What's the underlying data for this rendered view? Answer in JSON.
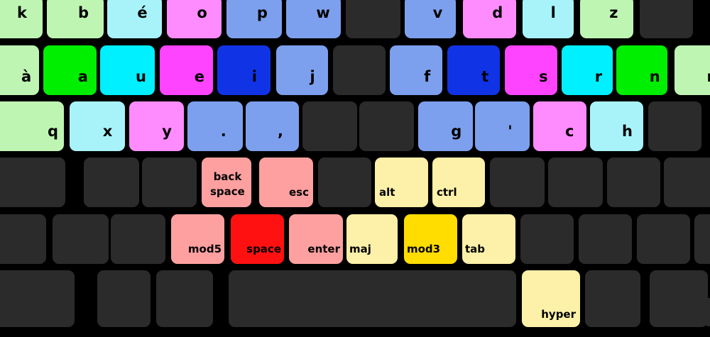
{
  "colors": {
    "dark": "#2b2b2b",
    "light_green": "#bff5b3",
    "green": "#00ee00",
    "light_cyan": "#a8f3fa",
    "cyan": "#00f0ff",
    "magenta": "#ff44ff",
    "pink": "#ff8cff",
    "light_blue": "#7da0ee",
    "blue": "#1133e6",
    "salmon": "#ffa0a0",
    "red": "#ff1111",
    "light_yellow": "#fdf0a8",
    "yellow": "#ffdd00"
  },
  "rows": [
    [
      {
        "label": "k",
        "color": "light_green"
      },
      {
        "label": "b",
        "color": "light_green"
      },
      {
        "label": "é",
        "color": "light_cyan"
      },
      {
        "label": "o",
        "color": "pink"
      },
      {
        "label": "p",
        "color": "light_blue"
      },
      {
        "label": "w",
        "color": "light_blue"
      },
      {
        "label": "",
        "color": "dark"
      },
      {
        "label": "v",
        "color": "light_blue"
      },
      {
        "label": "d",
        "color": "pink"
      },
      {
        "label": "l",
        "color": "light_cyan"
      },
      {
        "label": "z",
        "color": "light_green"
      },
      {
        "label": "",
        "color": "dark"
      }
    ],
    [
      {
        "label": "à",
        "color": "light_green"
      },
      {
        "label": "a",
        "color": "green"
      },
      {
        "label": "u",
        "color": "cyan"
      },
      {
        "label": "e",
        "color": "magenta"
      },
      {
        "label": "i",
        "color": "blue"
      },
      {
        "label": "j",
        "color": "light_blue"
      },
      {
        "label": "",
        "color": "dark"
      },
      {
        "label": "f",
        "color": "light_blue"
      },
      {
        "label": "t",
        "color": "blue"
      },
      {
        "label": "s",
        "color": "magenta"
      },
      {
        "label": "r",
        "color": "cyan"
      },
      {
        "label": "n",
        "color": "green"
      },
      {
        "label": "m",
        "color": "light_green"
      }
    ],
    [
      {
        "label": "q",
        "color": "light_green"
      },
      {
        "label": "x",
        "color": "light_cyan"
      },
      {
        "label": "y",
        "color": "pink"
      },
      {
        "label": ".",
        "color": "light_blue"
      },
      {
        "label": ",",
        "color": "light_blue"
      },
      {
        "label": "",
        "color": "dark"
      },
      {
        "label": "",
        "color": "dark"
      },
      {
        "label": "g",
        "color": "light_blue"
      },
      {
        "label": "'",
        "color": "light_blue"
      },
      {
        "label": "c",
        "color": "pink"
      },
      {
        "label": "h",
        "color": "light_cyan"
      },
      {
        "label": "",
        "color": "dark"
      }
    ],
    [
      {
        "label": "",
        "color": "dark"
      },
      {
        "label": "",
        "color": "dark"
      },
      {
        "label": "",
        "color": "dark"
      },
      {
        "label": "back\nspace",
        "color": "salmon"
      },
      {
        "label": "esc",
        "color": "salmon"
      },
      {
        "label": "",
        "color": "dark"
      },
      {
        "label": "alt",
        "color": "light_yellow"
      },
      {
        "label": "ctrl",
        "color": "light_yellow"
      },
      {
        "label": "",
        "color": "dark"
      },
      {
        "label": "",
        "color": "dark"
      },
      {
        "label": "",
        "color": "dark"
      },
      {
        "label": "",
        "color": "dark"
      }
    ],
    [
      {
        "label": "",
        "color": "dark"
      },
      {
        "label": "",
        "color": "dark"
      },
      {
        "label": "",
        "color": "dark"
      },
      {
        "label": "mod5",
        "color": "salmon"
      },
      {
        "label": "space",
        "color": "red"
      },
      {
        "label": "enter",
        "color": "salmon"
      },
      {
        "label": "maj",
        "color": "light_yellow"
      },
      {
        "label": "mod3",
        "color": "yellow"
      },
      {
        "label": "tab",
        "color": "light_yellow"
      },
      {
        "label": "",
        "color": "dark"
      },
      {
        "label": "",
        "color": "dark"
      },
      {
        "label": "",
        "color": "dark"
      },
      {
        "label": "",
        "color": "dark"
      }
    ],
    [
      {
        "label": "",
        "color": "dark"
      },
      {
        "label": "",
        "color": "dark"
      },
      {
        "label": "",
        "color": "dark"
      },
      {
        "label": "",
        "color": "dark"
      },
      {
        "label": "hyper",
        "color": "light_yellow"
      },
      {
        "label": "",
        "color": "dark"
      },
      {
        "label": "",
        "color": "dark"
      },
      {
        "label": "",
        "color": "dark"
      }
    ]
  ]
}
